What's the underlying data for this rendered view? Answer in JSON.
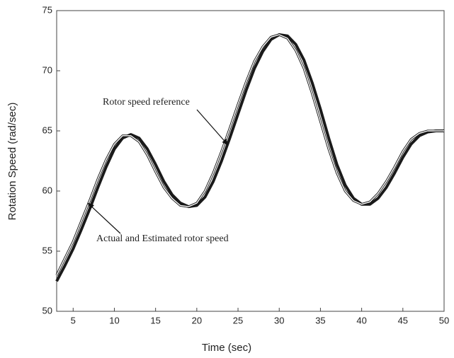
{
  "chart_data": {
    "type": "line",
    "x_label": "Time (sec)",
    "y_label": "Rotation Speed (rad/sec)",
    "x": [
      3,
      4,
      5,
      6,
      7,
      8,
      9,
      10,
      11,
      12,
      13,
      14,
      15,
      16,
      17,
      18,
      19,
      20,
      21,
      22,
      23,
      24,
      25,
      26,
      27,
      28,
      29,
      30,
      31,
      32,
      33,
      34,
      35,
      36,
      37,
      38,
      39,
      40,
      41,
      42,
      43,
      44,
      45,
      46,
      47,
      48,
      49,
      50
    ],
    "series": [
      {
        "color": "#1a1a1a",
        "values": [
          52.5,
          53.8,
          55.2,
          56.8,
          58.5,
          60.3,
          62.0,
          63.5,
          64.4,
          64.7,
          64.4,
          63.5,
          62.2,
          60.8,
          59.7,
          59.0,
          58.7,
          58.8,
          59.5,
          60.8,
          62.5,
          64.4,
          66.4,
          68.4,
          70.2,
          71.6,
          72.6,
          73.0,
          72.9,
          72.2,
          70.9,
          69.0,
          66.8,
          64.4,
          62.2,
          60.5,
          59.4,
          58.9,
          58.9,
          59.4,
          60.3,
          61.5,
          62.8,
          63.9,
          64.6,
          64.9,
          65.0,
          65.0
        ]
      },
      {
        "color": "#ffffff",
        "values": [
          53.0,
          54.4,
          55.8,
          57.5,
          59.2,
          61.0,
          62.6,
          63.9,
          64.6,
          64.6,
          64.1,
          63.0,
          61.6,
          60.3,
          59.4,
          58.8,
          58.7,
          59.0,
          60.0,
          61.5,
          63.3,
          65.2,
          67.2,
          69.1,
          70.8,
          72.0,
          72.8,
          73.0,
          72.7,
          71.7,
          70.2,
          68.1,
          65.8,
          63.5,
          61.5,
          60.0,
          59.2,
          58.9,
          59.1,
          59.8,
          60.8,
          62.0,
          63.3,
          64.3,
          64.8,
          65.0,
          65.0,
          65.0
        ]
      }
    ],
    "annotations": [
      "Rotor speed reference",
      "Actual and Estimated rotor speed"
    ],
    "xlim": [
      3,
      50
    ],
    "ylim": [
      50,
      75
    ],
    "xticks": [
      5,
      10,
      15,
      20,
      25,
      30,
      35,
      40,
      45,
      50
    ],
    "yticks": [
      50,
      55,
      60,
      65,
      70,
      75
    ]
  }
}
